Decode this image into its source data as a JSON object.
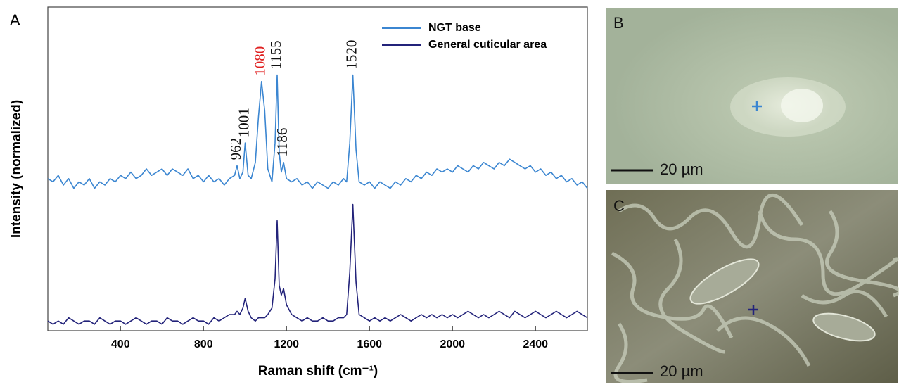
{
  "chart_data": {
    "type": "line",
    "panel_label": "A",
    "x_label": "Raman shift (cm⁻¹)",
    "y_label": "Intensity (normalized)",
    "xlim": [
      50,
      2650
    ],
    "xticks": [
      400,
      800,
      1200,
      1600,
      2000,
      2400
    ],
    "ylim": [
      0,
      1
    ],
    "legend": "upper right",
    "x": [
      50,
      75,
      100,
      125,
      150,
      175,
      200,
      225,
      250,
      275,
      300,
      325,
      350,
      375,
      400,
      425,
      450,
      475,
      500,
      525,
      550,
      575,
      600,
      625,
      650,
      675,
      700,
      725,
      750,
      775,
      800,
      825,
      850,
      875,
      900,
      925,
      950,
      962,
      975,
      990,
      1001,
      1015,
      1030,
      1050,
      1065,
      1080,
      1095,
      1110,
      1130,
      1145,
      1155,
      1165,
      1175,
      1186,
      1200,
      1225,
      1250,
      1275,
      1300,
      1325,
      1350,
      1375,
      1400,
      1425,
      1450,
      1475,
      1490,
      1505,
      1520,
      1535,
      1550,
      1575,
      1600,
      1625,
      1650,
      1675,
      1700,
      1725,
      1750,
      1775,
      1800,
      1825,
      1850,
      1875,
      1900,
      1925,
      1950,
      1975,
      2000,
      2025,
      2050,
      2075,
      2100,
      2125,
      2150,
      2175,
      2200,
      2225,
      2250,
      2275,
      2300,
      2325,
      2350,
      2375,
      2400,
      2425,
      2450,
      2475,
      2500,
      2525,
      2550,
      2575,
      2600,
      2625,
      2650
    ],
    "series": [
      {
        "name": "NGT base",
        "color": "#3b86d1",
        "values": [
          0.47,
          0.46,
          0.48,
          0.45,
          0.47,
          0.44,
          0.46,
          0.45,
          0.47,
          0.44,
          0.46,
          0.45,
          0.47,
          0.46,
          0.48,
          0.47,
          0.49,
          0.47,
          0.48,
          0.5,
          0.48,
          0.49,
          0.5,
          0.48,
          0.5,
          0.49,
          0.48,
          0.5,
          0.47,
          0.48,
          0.46,
          0.48,
          0.46,
          0.47,
          0.45,
          0.47,
          0.48,
          0.51,
          0.47,
          0.49,
          0.58,
          0.48,
          0.47,
          0.52,
          0.66,
          0.77,
          0.68,
          0.5,
          0.46,
          0.58,
          0.79,
          0.55,
          0.49,
          0.52,
          0.47,
          0.46,
          0.47,
          0.45,
          0.46,
          0.44,
          0.46,
          0.45,
          0.44,
          0.46,
          0.45,
          0.47,
          0.46,
          0.58,
          0.79,
          0.56,
          0.46,
          0.45,
          0.46,
          0.44,
          0.46,
          0.45,
          0.44,
          0.46,
          0.45,
          0.47,
          0.46,
          0.48,
          0.47,
          0.49,
          0.48,
          0.5,
          0.49,
          0.5,
          0.49,
          0.51,
          0.5,
          0.49,
          0.51,
          0.5,
          0.52,
          0.51,
          0.5,
          0.52,
          0.51,
          0.53,
          0.52,
          0.51,
          0.5,
          0.51,
          0.49,
          0.5,
          0.48,
          0.49,
          0.47,
          0.48,
          0.46,
          0.47,
          0.45,
          0.46,
          0.44
        ]
      },
      {
        "name": "General cuticular area",
        "color": "#23237a",
        "values": [
          0.03,
          0.02,
          0.03,
          0.02,
          0.04,
          0.03,
          0.02,
          0.03,
          0.03,
          0.02,
          0.04,
          0.03,
          0.02,
          0.03,
          0.03,
          0.02,
          0.03,
          0.04,
          0.03,
          0.02,
          0.03,
          0.03,
          0.02,
          0.04,
          0.03,
          0.03,
          0.02,
          0.03,
          0.04,
          0.03,
          0.03,
          0.02,
          0.04,
          0.03,
          0.04,
          0.05,
          0.05,
          0.06,
          0.05,
          0.07,
          0.1,
          0.06,
          0.04,
          0.03,
          0.04,
          0.04,
          0.04,
          0.05,
          0.07,
          0.16,
          0.34,
          0.14,
          0.11,
          0.13,
          0.08,
          0.05,
          0.04,
          0.03,
          0.04,
          0.03,
          0.03,
          0.04,
          0.03,
          0.03,
          0.04,
          0.04,
          0.05,
          0.18,
          0.39,
          0.15,
          0.05,
          0.04,
          0.03,
          0.04,
          0.03,
          0.04,
          0.03,
          0.04,
          0.05,
          0.04,
          0.03,
          0.04,
          0.05,
          0.04,
          0.05,
          0.04,
          0.05,
          0.04,
          0.05,
          0.04,
          0.05,
          0.06,
          0.05,
          0.04,
          0.05,
          0.04,
          0.05,
          0.06,
          0.05,
          0.04,
          0.06,
          0.05,
          0.04,
          0.05,
          0.06,
          0.05,
          0.04,
          0.05,
          0.06,
          0.05,
          0.04,
          0.05,
          0.06,
          0.05,
          0.04
        ]
      }
    ],
    "peak_labels": [
      962,
      1001,
      1080,
      1155,
      1186,
      1520
    ],
    "peak_label_colors": [
      "#111111",
      "#111111",
      "#e02020",
      "#111111",
      "#111111",
      "#111111"
    ]
  },
  "panels": [
    {
      "letter": "B",
      "scale_bar": "20 µm"
    },
    {
      "letter": "C",
      "scale_bar": "20 µm"
    }
  ]
}
